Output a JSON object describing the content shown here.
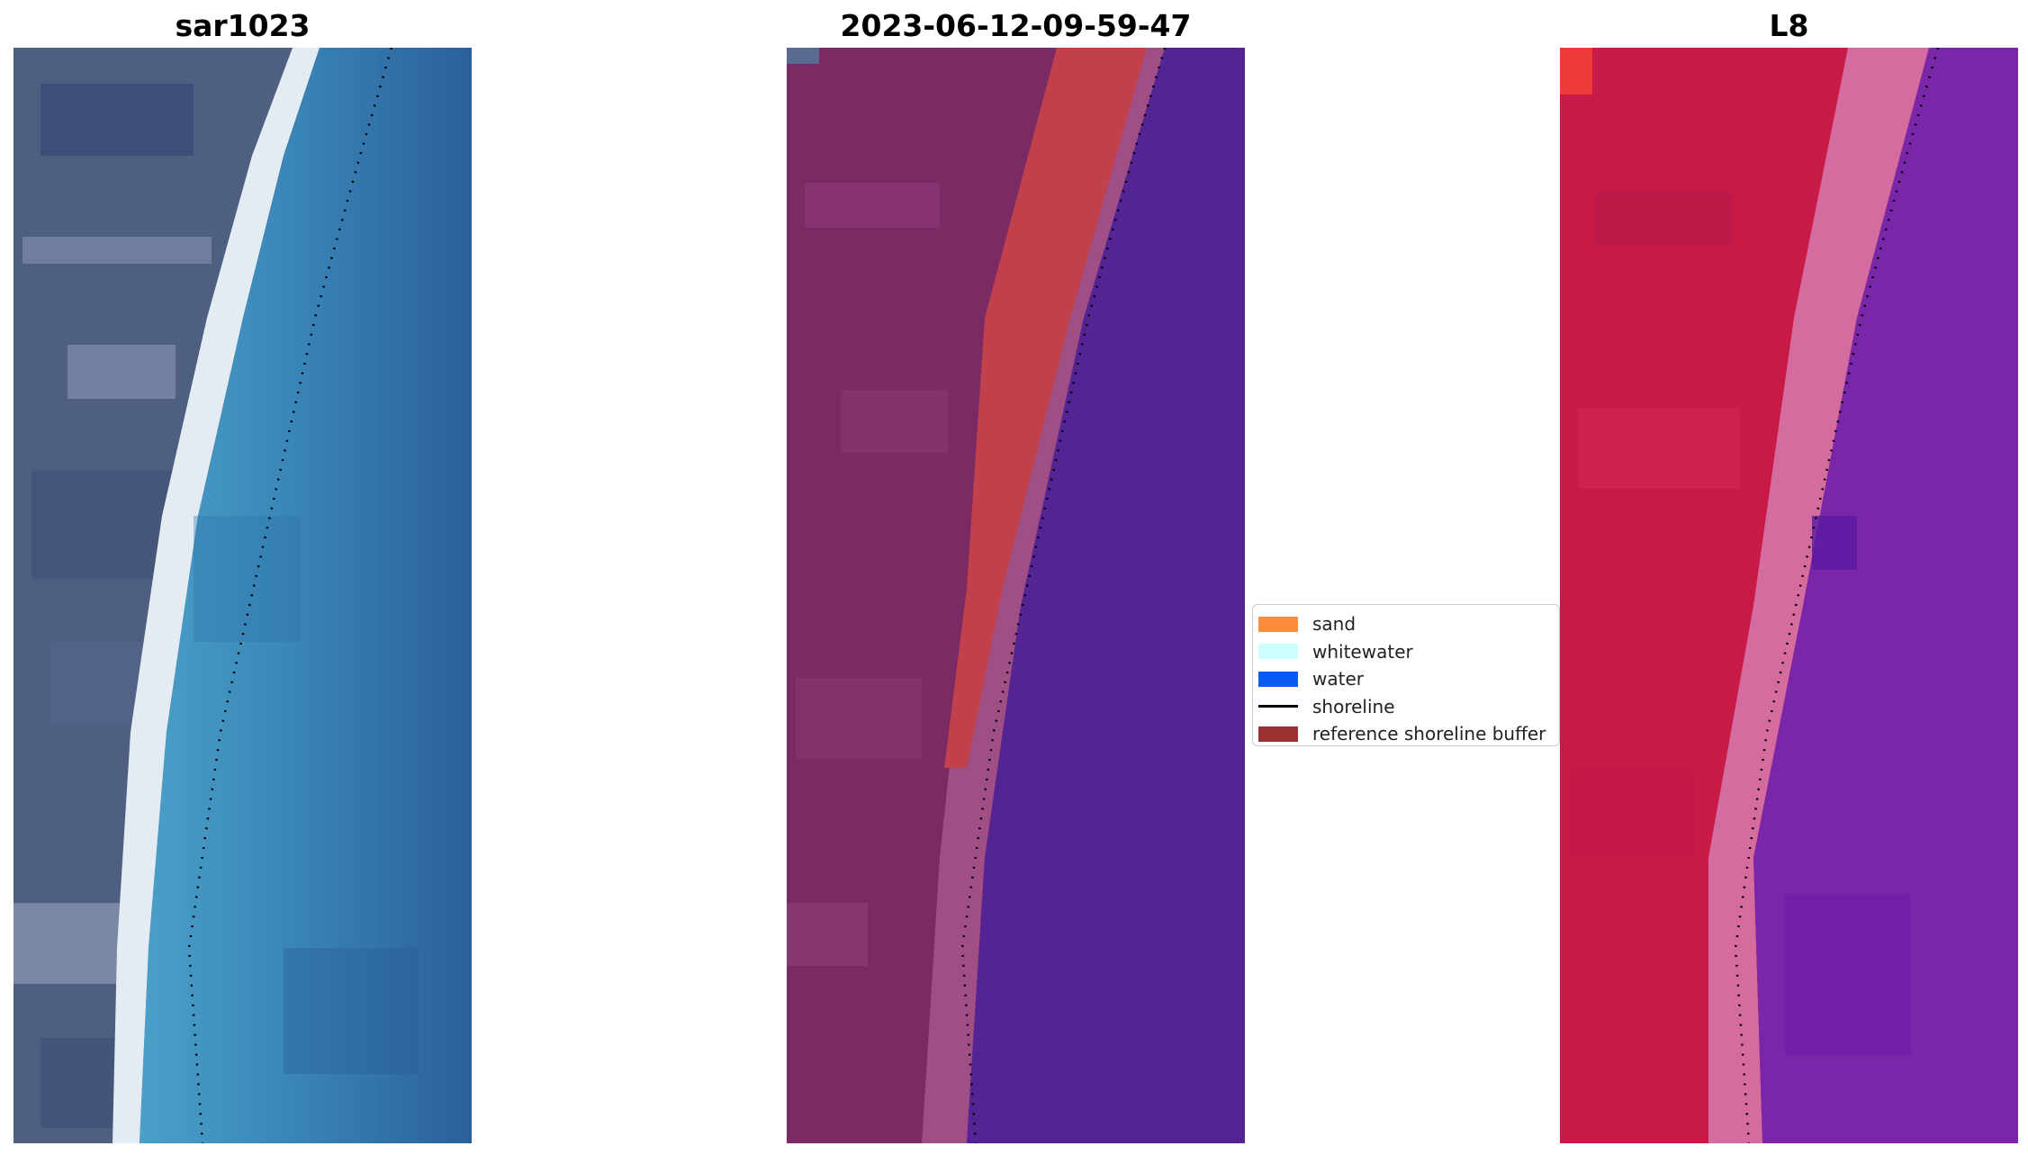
{
  "panels": [
    {
      "title": "sar1023",
      "kind": "rgb"
    },
    {
      "title": "2023-06-12-09-59-47",
      "kind": "classified"
    },
    {
      "title": "L8",
      "kind": "nir"
    }
  ],
  "legend": {
    "items": [
      {
        "label": "sand",
        "color": "#ff8c3c",
        "type": "patch"
      },
      {
        "label": "whitewater",
        "color": "#ccffff",
        "type": "patch"
      },
      {
        "label": "water",
        "color": "#0a5cf0",
        "type": "patch"
      },
      {
        "label": "shoreline",
        "color": "#000000",
        "type": "line"
      },
      {
        "label": "reference shoreline buffer",
        "color": "#9b3232",
        "type": "patch"
      }
    ]
  },
  "colors": {
    "rgb_land": "#4e5e80",
    "rgb_beach": "#e6eef5",
    "rgb_water_near": "#3f8fbc",
    "rgb_water_far": "#2e67a3",
    "classified_land": "#7b2a63",
    "classified_buffer": "#c0404c",
    "classified_water": "#542494",
    "nir_land": "#c81a46",
    "nir_edge": "#d46ca0",
    "nir_water": "#7a26a8",
    "shoreline_dots": "#000000"
  }
}
